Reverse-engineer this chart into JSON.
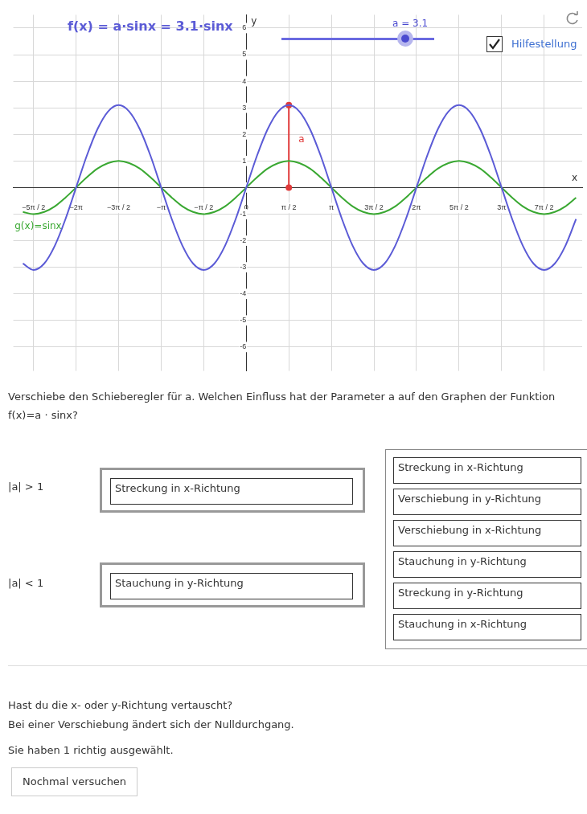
{
  "chart_data": {
    "type": "line",
    "xlabel": "x",
    "ylabel": "y",
    "x": [
      -8.247,
      -7.854,
      -7.461,
      -7.069,
      -6.676,
      -6.283,
      -5.89,
      -5.498,
      -5.105,
      -4.712,
      -4.32,
      -3.927,
      -3.534,
      -3.142,
      -2.749,
      -2.356,
      -1.963,
      -1.571,
      -1.178,
      -0.785,
      -0.393,
      0,
      0.393,
      0.785,
      1.178,
      1.571,
      1.963,
      2.356,
      2.749,
      3.142,
      3.534,
      3.927,
      4.32,
      4.712,
      5.105,
      5.498,
      5.89,
      6.283,
      6.676,
      7.069,
      7.461,
      7.854,
      8.247,
      8.639,
      9.032,
      9.425,
      9.817,
      10.21,
      10.603,
      10.996,
      11.388,
      11.781,
      12.174
    ],
    "series": [
      {
        "name": "f(x) = a·sinx = 3.1·sinx",
        "color": "#5b5bd6",
        "values": [
          -2.86,
          -3.1,
          -2.86,
          -2.19,
          -1.19,
          0,
          1.19,
          2.19,
          2.86,
          3.1,
          2.86,
          2.19,
          1.19,
          0,
          -1.19,
          -2.19,
          -2.86,
          -3.1,
          -2.86,
          -2.19,
          -1.19,
          0,
          1.19,
          2.19,
          2.86,
          3.1,
          2.86,
          2.19,
          1.19,
          0,
          -1.19,
          -2.19,
          -2.86,
          -3.1,
          -2.86,
          -2.19,
          -1.19,
          0,
          1.19,
          2.19,
          2.86,
          3.1,
          2.86,
          2.19,
          1.19,
          0,
          -1.19,
          -2.19,
          -2.86,
          -3.1,
          -2.86,
          -2.19,
          -1.19
        ]
      },
      {
        "name": "g(x)=sinx",
        "color": "#3aa832",
        "values": [
          -0.92,
          -1,
          -0.92,
          -0.71,
          -0.38,
          0,
          0.38,
          0.71,
          0.92,
          1,
          0.92,
          0.71,
          0.38,
          0,
          -0.38,
          -0.71,
          -0.92,
          -1,
          -0.92,
          -0.71,
          -0.38,
          0,
          0.38,
          0.71,
          0.92,
          1,
          0.92,
          0.71,
          0.38,
          0,
          -0.38,
          -0.71,
          -0.92,
          -1,
          -0.92,
          -0.71,
          -0.38,
          0,
          0.38,
          0.71,
          0.92,
          1,
          0.92,
          0.71,
          0.38,
          0,
          -0.38,
          -0.71,
          -0.92,
          -1,
          -0.92,
          -0.71,
          -0.38
        ]
      },
      {
        "color": "#e03a3a",
        "x": [
          1.571,
          1.571
        ],
        "values": [
          0,
          3.1
        ],
        "marker": "circle"
      }
    ],
    "xlim": [
      -8.6,
      12.4
    ],
    "ylim": [
      -6.9,
      6.5
    ],
    "xticks": [
      {
        "value": -7.854,
        "label": "−5π / 2"
      },
      {
        "value": -6.283,
        "label": "−2π"
      },
      {
        "value": -4.712,
        "label": "−3π / 2"
      },
      {
        "value": -3.142,
        "label": "−π"
      },
      {
        "value": -1.571,
        "label": "−π / 2"
      },
      0,
      {
        "value": 1.571,
        "label": "π / 2"
      },
      {
        "value": 3.142,
        "label": "π"
      },
      {
        "value": 4.712,
        "label": "3π / 2"
      },
      {
        "value": 6.283,
        "label": "2π"
      },
      {
        "value": 7.854,
        "label": "5π / 2"
      },
      {
        "value": 9.425,
        "label": "3π"
      },
      {
        "value": 10.996,
        "label": "7π / 2"
      }
    ],
    "yticks": [
      -6,
      -5,
      -4,
      -3,
      -2,
      -1,
      {
        "value": 0,
        "label": null
      },
      1,
      2,
      3,
      4,
      5,
      6
    ],
    "grid": true,
    "legend": false,
    "marker": "none",
    "annotations": [
      {
        "text": "a",
        "x": 1.571,
        "y": 1.7
      },
      "a = 3.1",
      "Hilfestellung",
      "Verschiebe den Schieberegler für a. Welchen Einfluss hat der Parameter a auf den Graphen der Funktion f(x)=a · sinx?",
      "|a| > 1",
      "Streckung in x-Richtung",
      "|a| < 1",
      "Stauchung in y-Richtung",
      "Streckung in x-Richtung",
      "Verschiebung in y-Richtung",
      "Verschiebung in x-Richtung",
      "Stauchung in y-Richtung",
      "Streckung in y-Richtung",
      "Stauchung in x-Richtung",
      "Hast du die x- oder y-Richtung vertauscht?",
      "Bei einer Verschiebung ändert sich der Nulldurchgang.",
      "Sie haben 1 richtig ausgewählt.",
      "Nochmal versuchen"
    ]
  }
}
